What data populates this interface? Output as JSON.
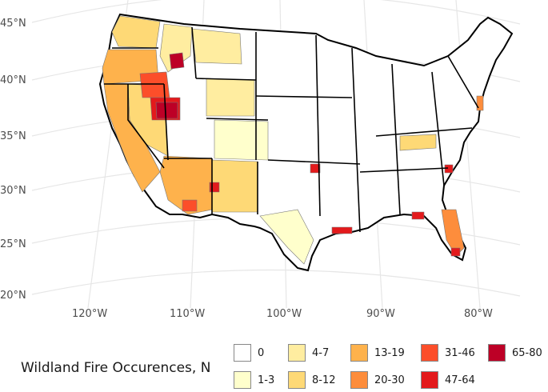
{
  "map": {
    "lat_labels": [
      "45°N",
      "40°N",
      "35°N",
      "30°N",
      "25°N",
      "20°N"
    ],
    "lon_labels": [
      "120°W",
      "110°W",
      "100°W",
      "90°W",
      "80°W"
    ]
  },
  "legend": {
    "title": "Wildland Fire Occurences, N",
    "items": [
      {
        "label": "0",
        "color": "#ffffff"
      },
      {
        "label": "1-3",
        "color": "#ffffcc"
      },
      {
        "label": "4-7",
        "color": "#ffeda0"
      },
      {
        "label": "8-12",
        "color": "#fed976"
      },
      {
        "label": "13-19",
        "color": "#feb24c"
      },
      {
        "label": "20-30",
        "color": "#fd8d3c"
      },
      {
        "label": "31-46",
        "color": "#fc4e2a"
      },
      {
        "label": "47-64",
        "color": "#e31a1c"
      },
      {
        "label": "65-80",
        "color": "#bd0026"
      }
    ]
  }
}
